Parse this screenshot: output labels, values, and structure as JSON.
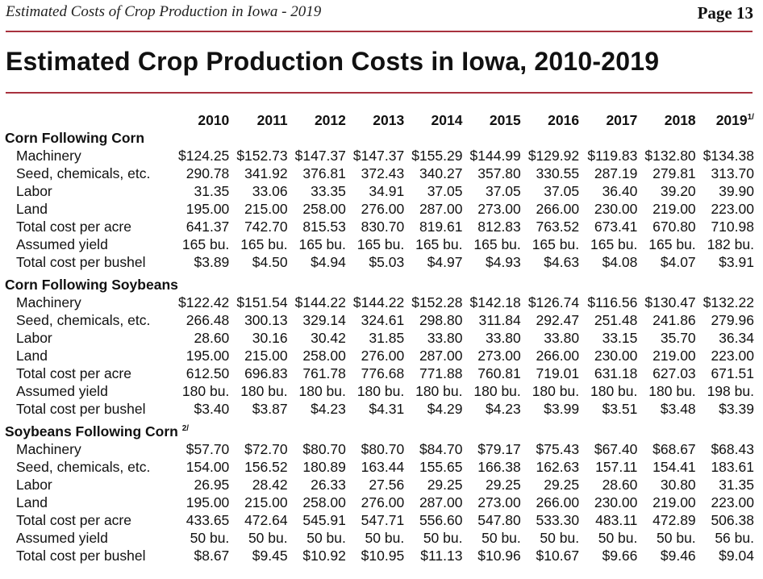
{
  "header": {
    "running_title": "Estimated Costs of Crop Production in Iowa - 2019",
    "page": "Page 13"
  },
  "title": "Estimated Crop Production Costs in Iowa, 2010-2019",
  "years": [
    "2010",
    "2011",
    "2012",
    "2013",
    "2014",
    "2015",
    "2016",
    "2017",
    "2018",
    "2019"
  ],
  "last_year_note": "1/",
  "sections": [
    {
      "name": "Corn Following Corn",
      "note": "",
      "rows": [
        {
          "label": "Machinery",
          "values": [
            "$124.25",
            "$152.73",
            "$147.37",
            "$147.37",
            "$155.29",
            "$144.99",
            "$129.92",
            "$119.83",
            "$132.80",
            "$134.38"
          ]
        },
        {
          "label": "Seed, chemicals, etc.",
          "values": [
            "290.78",
            "341.92",
            "376.81",
            "372.43",
            "340.27",
            "357.80",
            "330.55",
            "287.19",
            "279.81",
            "313.70"
          ]
        },
        {
          "label": "Labor",
          "values": [
            "31.35",
            "33.06",
            "33.35",
            "34.91",
            "37.05",
            "37.05",
            "37.05",
            "36.40",
            "39.20",
            "39.90"
          ]
        },
        {
          "label": "Land",
          "values": [
            "195.00",
            "215.00",
            "258.00",
            "276.00",
            "287.00",
            "273.00",
            "266.00",
            "230.00",
            "219.00",
            "223.00"
          ]
        },
        {
          "label": "Total cost per acre",
          "values": [
            "641.37",
            "742.70",
            "815.53",
            "830.70",
            "819.61",
            "812.83",
            "763.52",
            "673.41",
            "670.80",
            "710.98"
          ]
        },
        {
          "label": "Assumed yield",
          "values": [
            "165 bu.",
            "165 bu.",
            "165 bu.",
            "165 bu.",
            "165 bu.",
            "165 bu.",
            "165 bu.",
            "165 bu.",
            "165 bu.",
            "182 bu."
          ]
        },
        {
          "label": "Total cost per bushel",
          "values": [
            "$3.89",
            "$4.50",
            "$4.94",
            "$5.03",
            "$4.97",
            "$4.93",
            "$4.63",
            "$4.08",
            "$4.07",
            "$3.91"
          ]
        }
      ]
    },
    {
      "name": "Corn Following Soybeans",
      "note": "",
      "rows": [
        {
          "label": "Machinery",
          "values": [
            "$122.42",
            "$151.54",
            "$144.22",
            "$144.22",
            "$152.28",
            "$142.18",
            "$126.74",
            "$116.56",
            "$130.47",
            "$132.22"
          ]
        },
        {
          "label": "Seed, chemicals, etc.",
          "values": [
            "266.48",
            "300.13",
            "329.14",
            "324.61",
            "298.80",
            "311.84",
            "292.47",
            "251.48",
            "241.86",
            "279.96"
          ]
        },
        {
          "label": "Labor",
          "values": [
            "28.60",
            "30.16",
            "30.42",
            "31.85",
            "33.80",
            "33.80",
            "33.80",
            "33.15",
            "35.70",
            "36.34"
          ]
        },
        {
          "label": "Land",
          "values": [
            "195.00",
            "215.00",
            "258.00",
            "276.00",
            "287.00",
            "273.00",
            "266.00",
            "230.00",
            "219.00",
            "223.00"
          ]
        },
        {
          "label": "Total cost per acre",
          "values": [
            "612.50",
            "696.83",
            "761.78",
            "776.68",
            "771.88",
            "760.81",
            "719.01",
            "631.18",
            "627.03",
            "671.51"
          ]
        },
        {
          "label": "Assumed yield",
          "values": [
            "180 bu.",
            "180 bu.",
            "180 bu.",
            "180 bu.",
            "180 bu.",
            "180 bu.",
            "180 bu.",
            "180 bu.",
            "180 bu.",
            "198 bu."
          ]
        },
        {
          "label": "Total cost per bushel",
          "values": [
            "$3.40",
            "$3.87",
            "$4.23",
            "$4.31",
            "$4.29",
            "$4.23",
            "$3.99",
            "$3.51",
            "$3.48",
            "$3.39"
          ]
        }
      ]
    },
    {
      "name": "Soybeans Following Corn",
      "note": "2/",
      "rows": [
        {
          "label": "Machinery",
          "values": [
            "$57.70",
            "$72.70",
            "$80.70",
            "$80.70",
            "$84.70",
            "$79.17",
            "$75.43",
            "$67.40",
            "$68.67",
            "$68.43"
          ]
        },
        {
          "label": "Seed, chemicals, etc.",
          "values": [
            "154.00",
            "156.52",
            "180.89",
            "163.44",
            "155.65",
            "166.38",
            "162.63",
            "157.11",
            "154.41",
            "183.61"
          ]
        },
        {
          "label": "Labor",
          "values": [
            "26.95",
            "28.42",
            "26.33",
            "27.56",
            "29.25",
            "29.25",
            "29.25",
            "28.60",
            "30.80",
            "31.35"
          ]
        },
        {
          "label": "Land",
          "values": [
            "195.00",
            "215.00",
            "258.00",
            "276.00",
            "287.00",
            "273.00",
            "266.00",
            "230.00",
            "219.00",
            "223.00"
          ]
        },
        {
          "label": "Total cost per acre",
          "values": [
            "433.65",
            "472.64",
            "545.91",
            "547.71",
            "556.60",
            "547.80",
            "533.30",
            "483.11",
            "472.89",
            "506.38"
          ]
        },
        {
          "label": "Assumed yield",
          "values": [
            "50 bu.",
            "50 bu.",
            "50 bu.",
            "50 bu.",
            "50 bu.",
            "50 bu.",
            "50 bu.",
            "50 bu.",
            "50 bu.",
            "56 bu."
          ]
        },
        {
          "label": "Total cost per bushel",
          "values": [
            "$8.67",
            "$9.45",
            "$10.92",
            "$10.95",
            "$11.13",
            "$10.96",
            "$10.67",
            "$9.66",
            "$9.46",
            "$9.04"
          ]
        }
      ]
    }
  ],
  "colors": {
    "rule": "#a8323e",
    "text": "#111111"
  }
}
